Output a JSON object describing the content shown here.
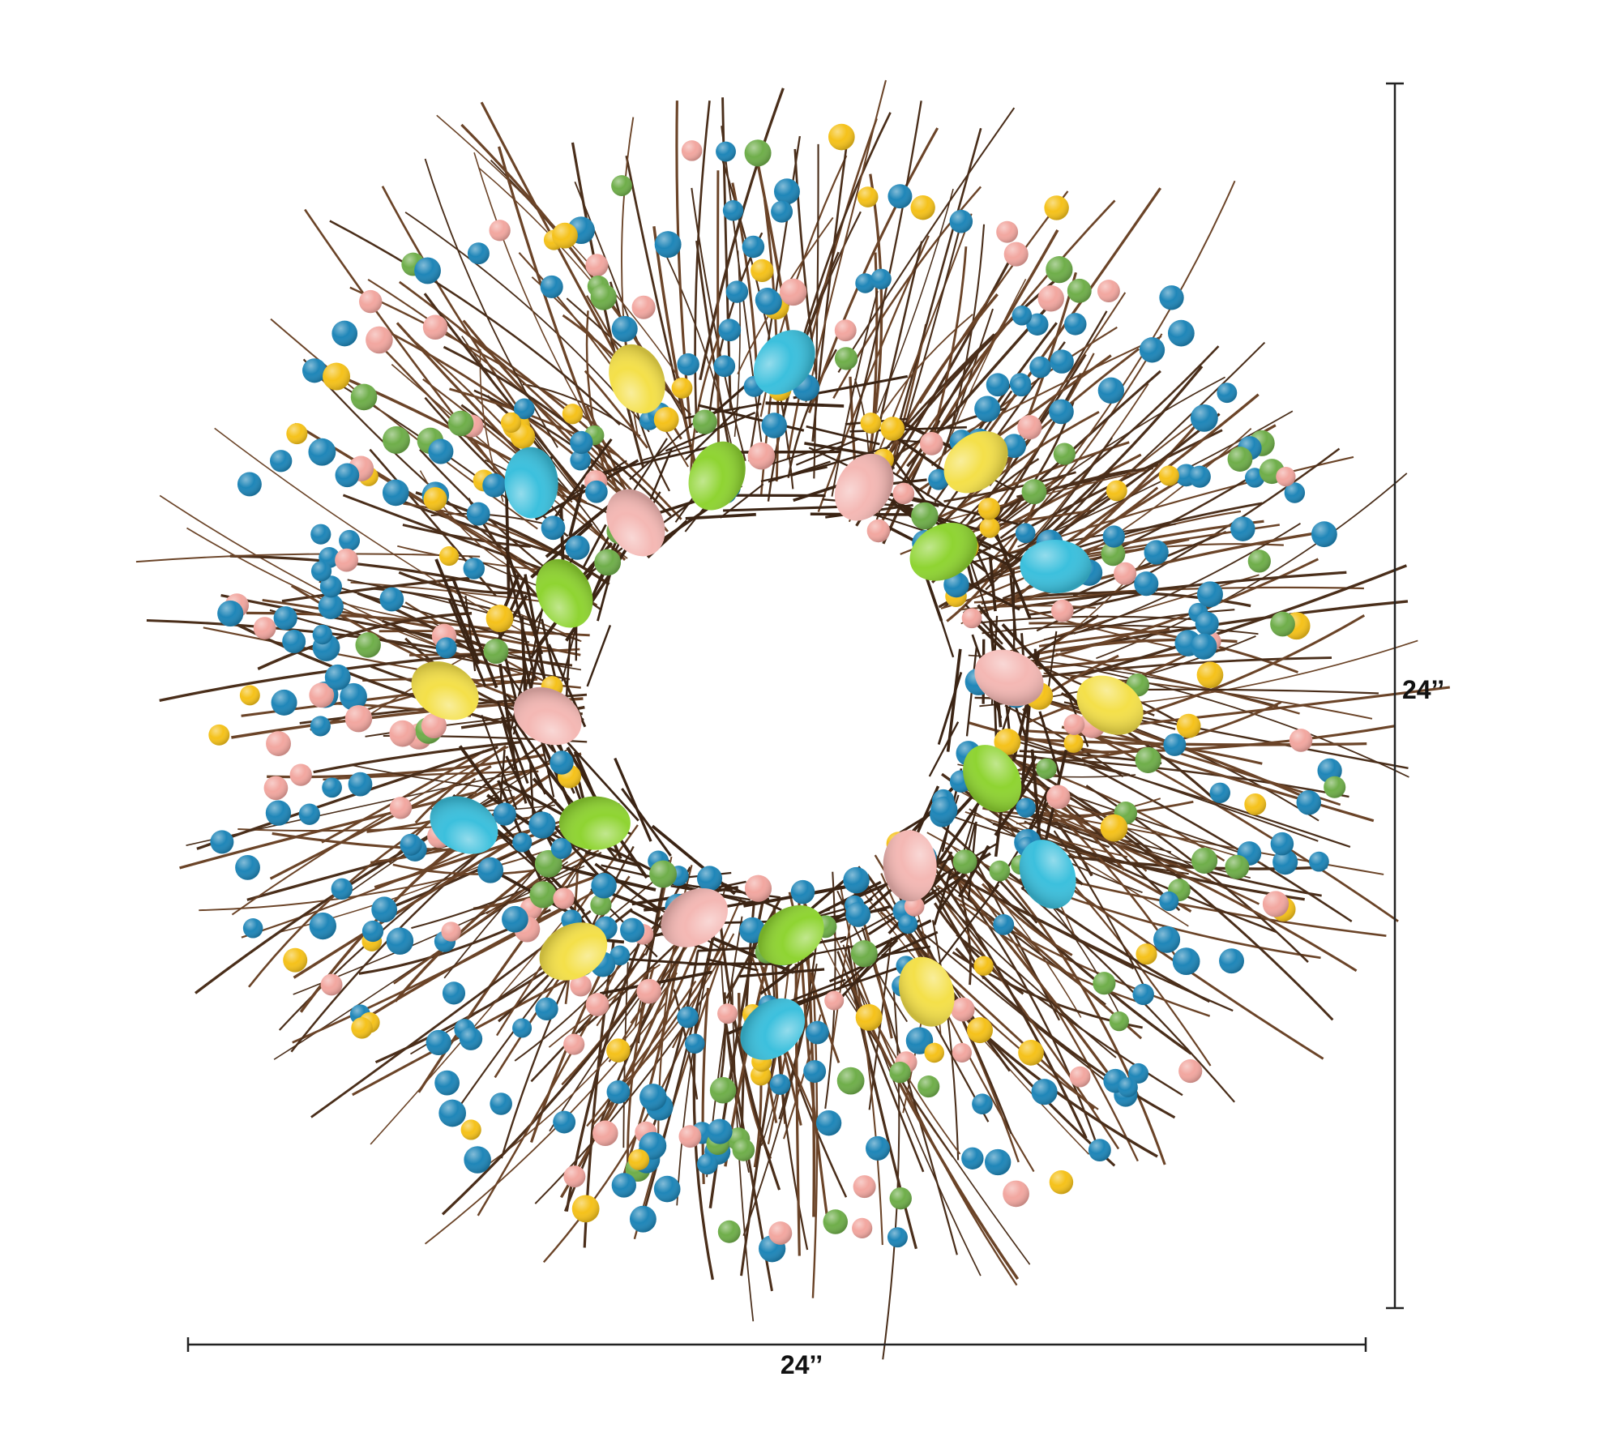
{
  "dimensions": {
    "height_label": "24’’",
    "width_label": "24’’"
  }
}
